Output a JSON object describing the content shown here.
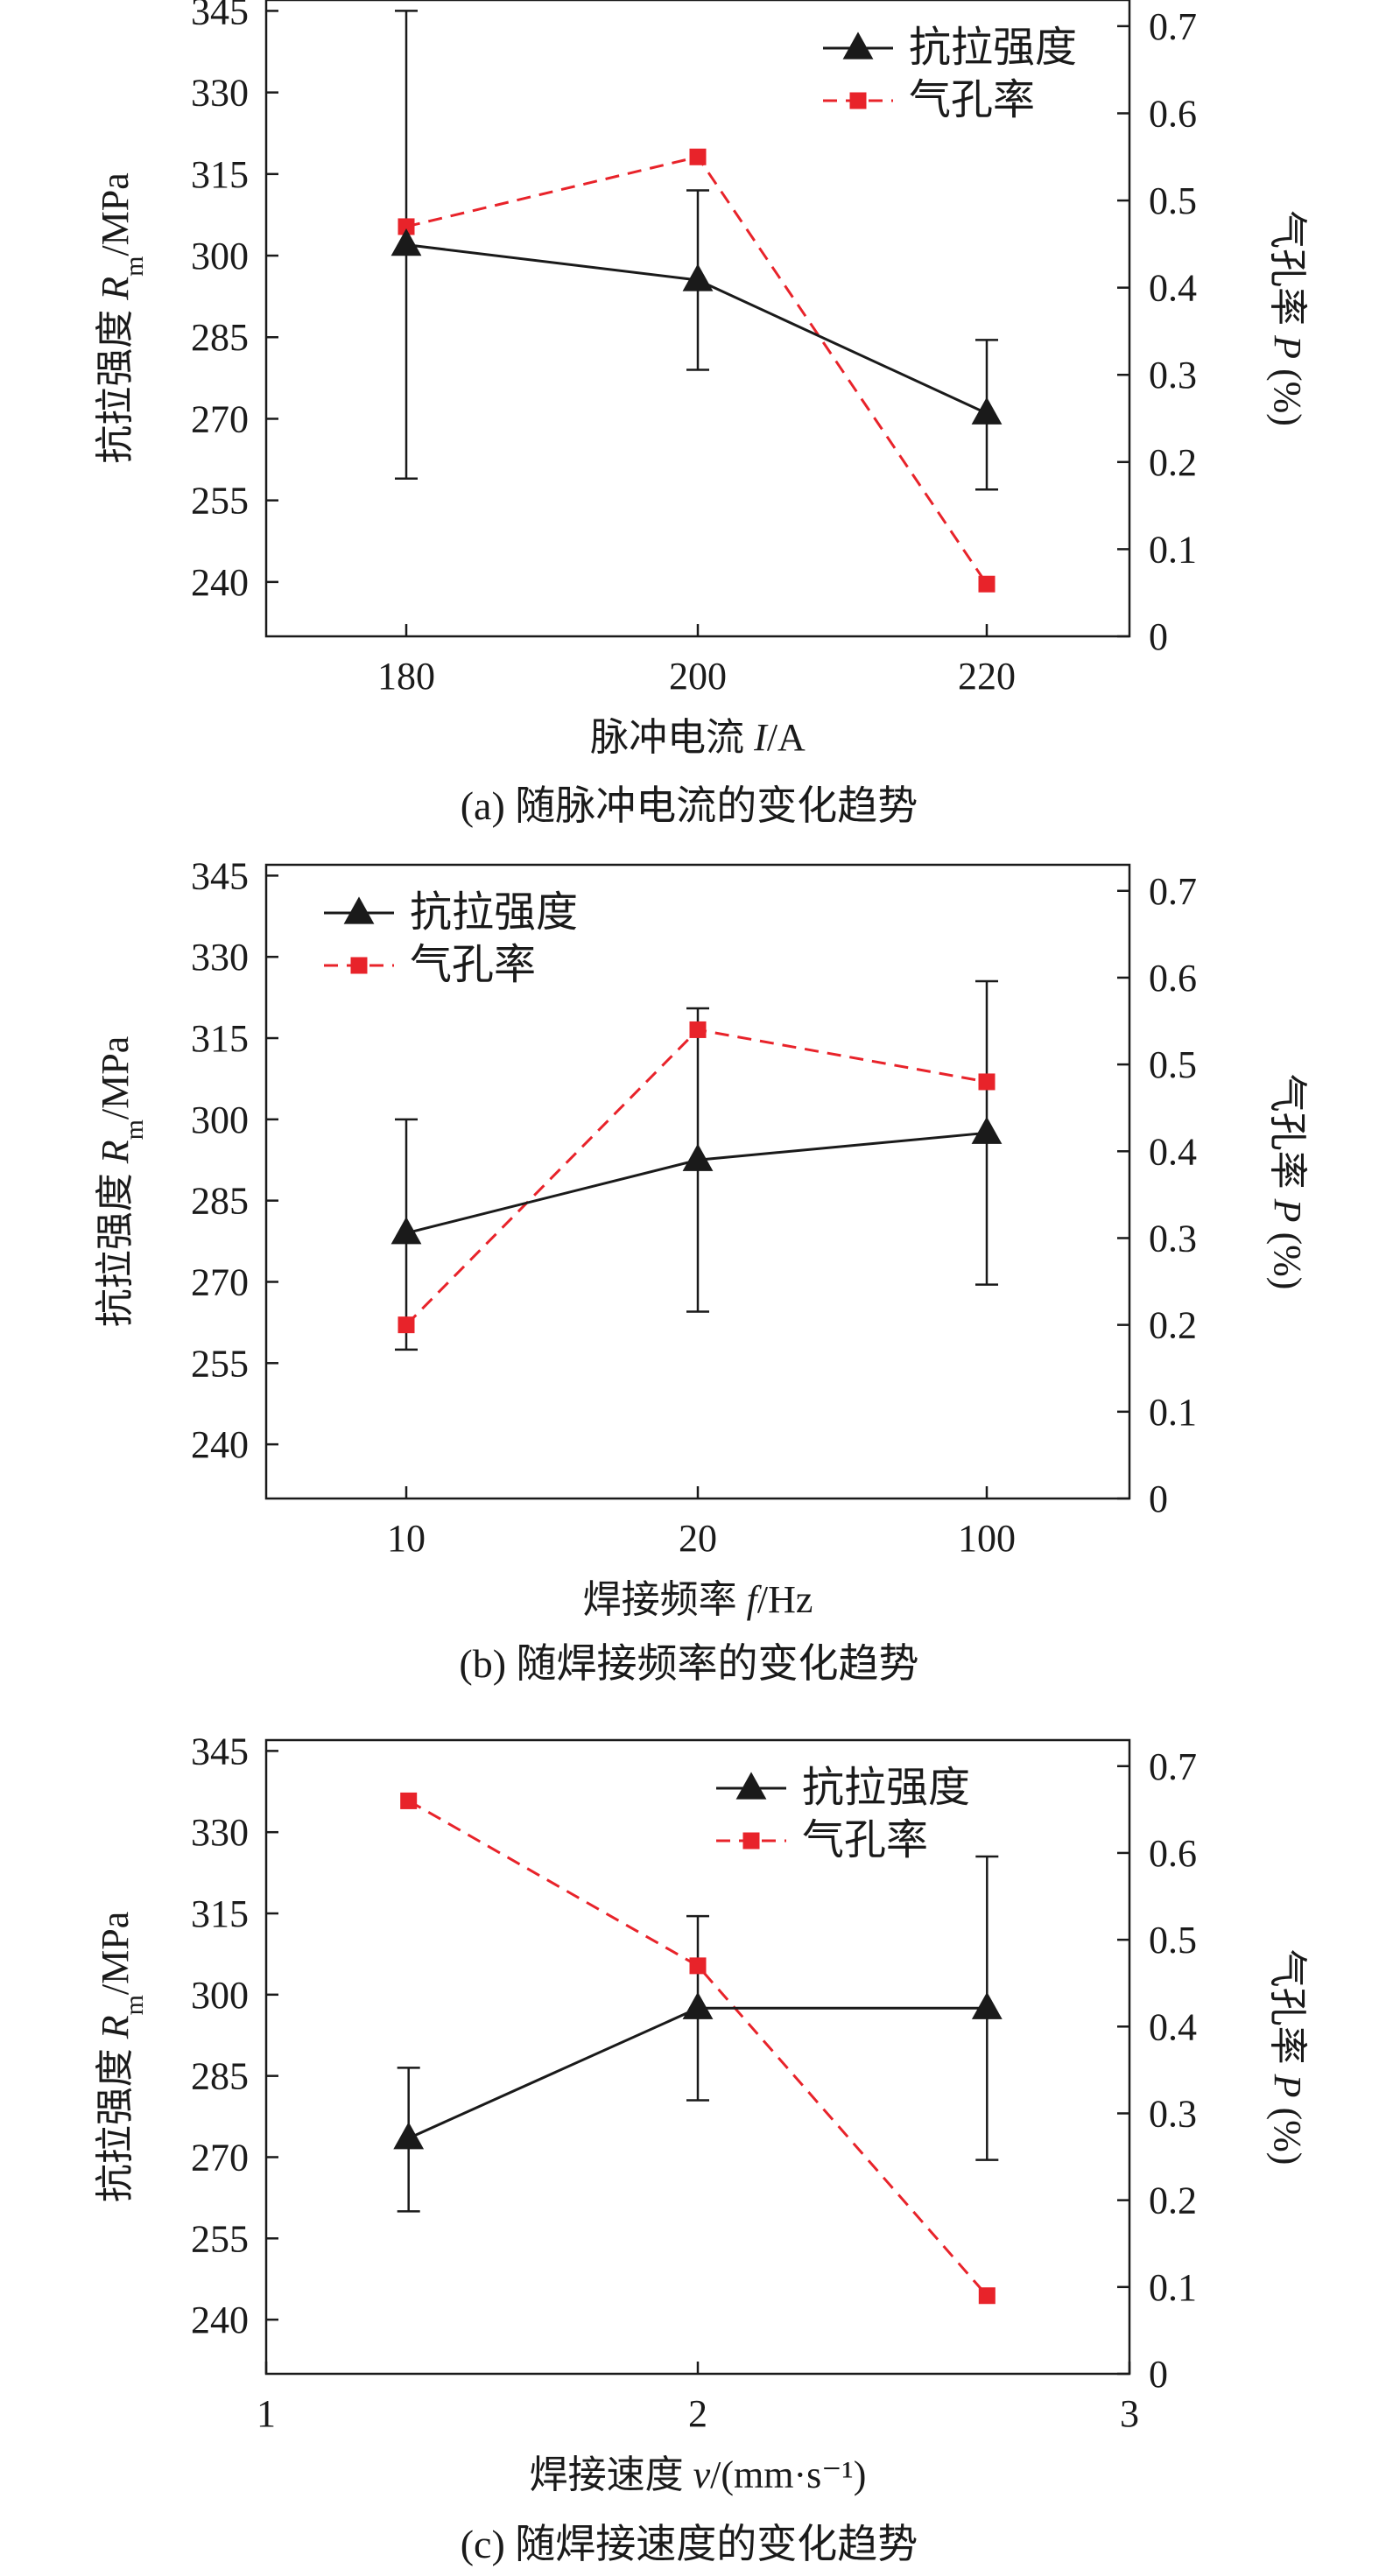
{
  "figure": {
    "legend": {
      "strength": "抗拉强度",
      "porosity": "气孔率"
    },
    "left_axis": {
      "label_prefix": "抗拉强度 ",
      "var": "R",
      "sub": "m",
      "unit": "/MPa"
    },
    "right_axis": {
      "label_prefix": "气孔率 ",
      "var": "P",
      "unit": " (%)"
    }
  },
  "colors": {
    "strength": "#1a1a1a",
    "porosity": "#e8232a",
    "axis": "#1a1a1a"
  },
  "chart_data": [
    {
      "type": "line",
      "title": "(a) 随脉冲电流的变化趋势",
      "xlabel_prefix": "脉冲电流 ",
      "xlabel_var": "I",
      "xlabel_unit": "/A",
      "x_scale": "categorical",
      "categories": [
        "180",
        "200",
        "220"
      ],
      "ylim": [
        230,
        347
      ],
      "yticks": [
        240,
        255,
        270,
        285,
        300,
        315,
        330,
        345
      ],
      "y2lim": [
        0,
        0.73
      ],
      "y2ticks": [
        "0",
        "0.1",
        "0.2",
        "0.3",
        "0.4",
        "0.5",
        "0.6",
        "0.7"
      ],
      "legend_position": "top-right",
      "series": [
        {
          "name": "抗拉强度",
          "axis": "left",
          "values": [
            302,
            295.5,
            271
          ],
          "error_low": [
            259,
            279,
            257
          ],
          "error_high": [
            345,
            312,
            284.5
          ]
        },
        {
          "name": "气孔率",
          "axis": "right",
          "values": [
            0.47,
            0.55,
            0.06
          ]
        }
      ]
    },
    {
      "type": "line",
      "title": "(b) 随焊接频率的变化趋势",
      "xlabel_prefix": "焊接频率 ",
      "xlabel_var": "f",
      "xlabel_unit": "/Hz",
      "x_scale": "categorical",
      "categories": [
        "10",
        "20",
        "100"
      ],
      "ylim": [
        230,
        347
      ],
      "yticks": [
        240,
        255,
        270,
        285,
        300,
        315,
        330,
        345
      ],
      "y2lim": [
        0,
        0.73
      ],
      "y2ticks": [
        "0",
        "0.1",
        "0.2",
        "0.3",
        "0.4",
        "0.5",
        "0.6",
        "0.7"
      ],
      "legend_position": "top-left",
      "series": [
        {
          "name": "抗拉强度",
          "axis": "left",
          "values": [
            279,
            292.5,
            297.5
          ],
          "error_low": [
            257.5,
            264.5,
            269.5
          ],
          "error_high": [
            300,
            320.5,
            325.5
          ]
        },
        {
          "name": "气孔率",
          "axis": "right",
          "values": [
            0.2,
            0.54,
            0.48
          ]
        }
      ]
    },
    {
      "type": "line",
      "title": "(c) 随焊接速度的变化趋势",
      "xlabel_prefix": "焊接速度 ",
      "xlabel_var": "v",
      "xlabel_unit": "/(mm·s⁻¹)",
      "x_scale": "linear",
      "xlim": [
        1,
        3
      ],
      "xticks": [
        "1",
        "2",
        "3"
      ],
      "x": [
        1.33,
        2.0,
        2.67
      ],
      "ylim": [
        230,
        347
      ],
      "yticks": [
        240,
        255,
        270,
        285,
        300,
        315,
        330,
        345
      ],
      "y2lim": [
        0,
        0.73
      ],
      "y2ticks": [
        "0",
        "0.1",
        "0.2",
        "0.3",
        "0.4",
        "0.5",
        "0.6",
        "0.7"
      ],
      "legend_position": "top-right",
      "series": [
        {
          "name": "抗拉强度",
          "axis": "left",
          "values": [
            273.5,
            297.5,
            297.5
          ],
          "error_low": [
            260,
            280.5,
            269.5
          ],
          "error_high": [
            286.5,
            314.5,
            325.5
          ]
        },
        {
          "name": "气孔率",
          "axis": "right",
          "values": [
            0.66,
            0.47,
            0.09
          ]
        }
      ]
    }
  ]
}
